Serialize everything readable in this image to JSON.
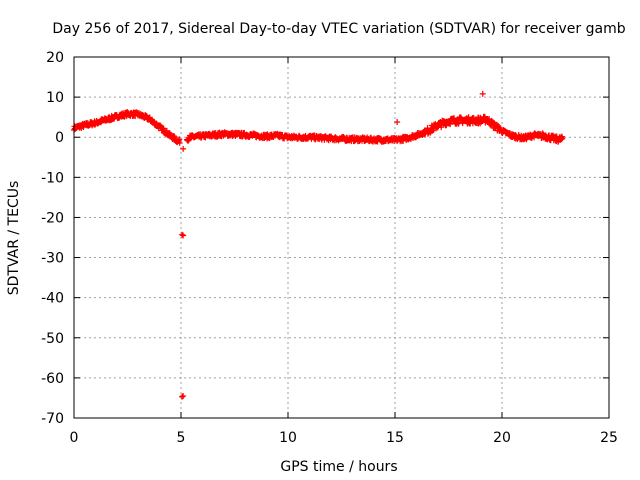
{
  "chart_data": {
    "type": "scatter",
    "title": "Day 256 of 2017, Sidereal Day-to-day VTEC variation (SDTVAR) for receiver gamb",
    "xlabel": "GPS time / hours",
    "ylabel": "SDTVAR / TECUs",
    "xlim": [
      0,
      25
    ],
    "ylim": [
      -70,
      20
    ],
    "xticks": [
      0,
      5,
      10,
      15,
      20,
      25
    ],
    "yticks": [
      -70,
      -60,
      -50,
      -40,
      -30,
      -20,
      -10,
      0,
      10,
      20
    ],
    "grid": true,
    "marker": "+",
    "series": [
      {
        "name": "SDTVAR",
        "color": "#ff0000",
        "trend": [
          [
            0.0,
            2.3
          ],
          [
            0.5,
            3.0
          ],
          [
            1.0,
            3.6
          ],
          [
            1.5,
            4.4
          ],
          [
            2.0,
            5.2
          ],
          [
            2.5,
            5.8
          ],
          [
            3.0,
            5.7
          ],
          [
            3.5,
            4.6
          ],
          [
            4.0,
            2.5
          ],
          [
            4.4,
            0.8
          ],
          [
            4.8,
            -0.8
          ],
          [
            5.1,
            -1.3
          ],
          [
            5.4,
            0.0
          ],
          [
            6.0,
            0.3
          ],
          [
            7.0,
            0.8
          ],
          [
            8.0,
            0.6
          ],
          [
            9.0,
            0.2
          ],
          [
            9.5,
            0.4
          ],
          [
            10.0,
            0.0
          ],
          [
            11.0,
            0.0
          ],
          [
            12.0,
            -0.3
          ],
          [
            13.0,
            -0.5
          ],
          [
            14.0,
            -0.6
          ],
          [
            15.0,
            -0.7
          ],
          [
            15.5,
            -0.3
          ],
          [
            16.0,
            0.5
          ],
          [
            16.5,
            1.5
          ],
          [
            17.0,
            3.0
          ],
          [
            17.5,
            4.0
          ],
          [
            18.0,
            4.2
          ],
          [
            18.5,
            4.2
          ],
          [
            19.0,
            4.2
          ],
          [
            19.3,
            4.5
          ],
          [
            19.6,
            3.0
          ],
          [
            20.0,
            1.5
          ],
          [
            20.5,
            0.3
          ],
          [
            21.0,
            -0.2
          ],
          [
            21.5,
            0.5
          ],
          [
            22.0,
            0.3
          ],
          [
            22.5,
            -0.5
          ],
          [
            22.8,
            -0.5
          ]
        ],
        "outliers": [
          [
            5.1,
            -2.9
          ],
          [
            5.1,
            -24.5
          ],
          [
            5.05,
            -24.3
          ],
          [
            5.1,
            -64.5
          ],
          [
            5.05,
            -64.7
          ],
          [
            15.1,
            3.8
          ],
          [
            19.1,
            10.8
          ]
        ]
      }
    ]
  }
}
